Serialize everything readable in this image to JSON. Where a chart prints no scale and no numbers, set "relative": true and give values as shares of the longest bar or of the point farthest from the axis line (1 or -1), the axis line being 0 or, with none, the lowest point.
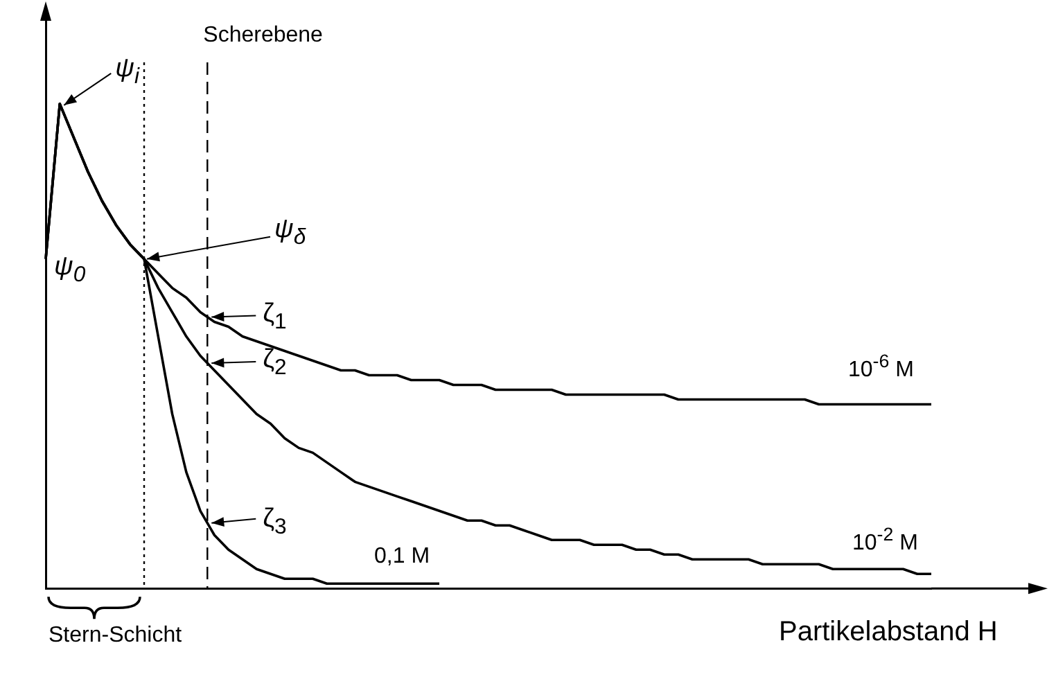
{
  "chart_data": {
    "type": "line",
    "relative": true,
    "xlabel": "Partikelabstand H",
    "grid": false,
    "legend": false,
    "marker": "none",
    "line_style": "solid",
    "categories": [
      null,
      null,
      null,
      null,
      null,
      null,
      null,
      null,
      null,
      null,
      null,
      null,
      null,
      null,
      null,
      null,
      null,
      null,
      null,
      null,
      null,
      null,
      null,
      null,
      null,
      null,
      null,
      null,
      null,
      null,
      null,
      null,
      null,
      null,
      null,
      null,
      null,
      null,
      null,
      null,
      null,
      null,
      null,
      null,
      null,
      null,
      null,
      null,
      null,
      null,
      null,
      null,
      null,
      null,
      null,
      null,
      null,
      null,
      null,
      null,
      null,
      null,
      null,
      null
    ],
    "series": [
      {
        "name": "10$^{-6}$ M",
        "color": "#000000",
        "values": [
          0.68,
          1,
          0.93,
          0.86,
          0.8,
          0.75,
          0.71,
          0.68,
          0.65,
          0.62,
          0.6,
          0.57,
          0.55,
          0.54,
          0.52,
          0.51,
          0.5,
          0.49,
          0.48,
          0.47,
          0.46,
          0.45,
          0.45,
          0.44,
          0.44,
          0.44,
          0.43,
          0.43,
          0.43,
          0.42,
          0.42,
          0.42,
          0.41,
          0.41,
          0.41,
          0.41,
          0.41,
          0.4,
          0.4,
          0.4,
          0.4,
          0.4,
          0.4,
          0.4,
          0.4,
          0.39,
          0.39,
          0.39,
          0.39,
          0.39,
          0.39,
          0.39,
          0.39,
          0.39,
          0.39,
          0.38,
          0.38,
          0.38,
          0.38,
          0.38,
          0.38,
          0.38,
          0.38,
          0.38
        ]
      },
      {
        "name": "10$^{-2}$ M",
        "color": "#000000",
        "values": [
          0.68,
          1,
          0.93,
          0.86,
          0.8,
          0.75,
          0.71,
          0.68,
          0.62,
          0.57,
          0.52,
          0.48,
          0.45,
          0.42,
          0.39,
          0.36,
          0.34,
          0.31,
          0.29,
          0.28,
          0.26,
          0.24,
          0.22,
          0.21,
          0.2,
          0.19,
          0.18,
          0.17,
          0.16,
          0.15,
          0.14,
          0.14,
          0.13,
          0.13,
          0.12,
          0.11,
          0.1,
          0.1,
          0.1,
          0.09,
          0.09,
          0.09,
          0.08,
          0.08,
          0.07,
          0.07,
          0.06,
          0.06,
          0.06,
          0.06,
          0.06,
          0.05,
          0.05,
          0.05,
          0.05,
          0.05,
          0.04,
          0.04,
          0.04,
          0.04,
          0.04,
          0.04,
          0.03,
          0.03
        ]
      },
      {
        "name": "0,1 M",
        "color": "#000000",
        "values": [
          0.68,
          1,
          0.93,
          0.86,
          0.8,
          0.75,
          0.71,
          0.68,
          0.52,
          0.36,
          0.24,
          0.16,
          0.11,
          0.08,
          0.06,
          0.04,
          0.03,
          0.02,
          0.02,
          0.02,
          0.01,
          0.01,
          0.01,
          0.01,
          0.01,
          0.01,
          0.01,
          0.01,
          0.01,
          null,
          null,
          null,
          null,
          null,
          null,
          null,
          null,
          null,
          null,
          null,
          null,
          null,
          null,
          null,
          null,
          null,
          null,
          null,
          null,
          null,
          null,
          null,
          null,
          null,
          null,
          null,
          null,
          null,
          null,
          null,
          null,
          null,
          null,
          null
        ]
      }
    ],
    "annotations": [
      "ψ$_{i}$",
      "ψ$_{0}$",
      "ψ$_{δ}$",
      "Scherebene",
      "ζ$_{1}$",
      "ζ$_{2}$",
      "ζ$_{3}$",
      "Stern-Schicht"
    ]
  }
}
